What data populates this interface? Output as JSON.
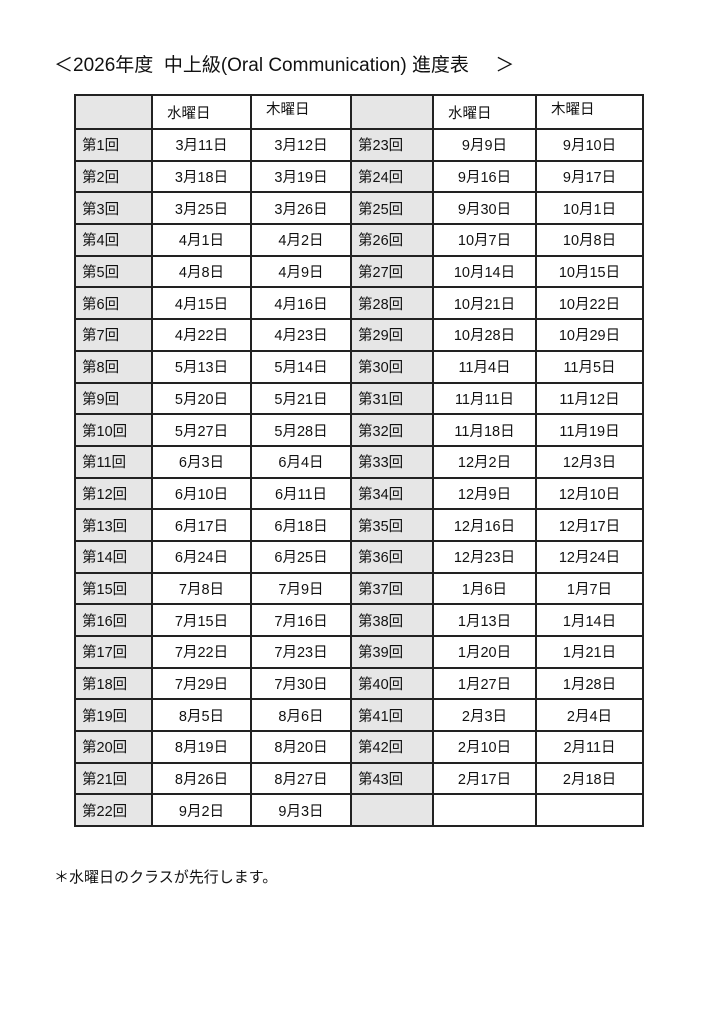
{
  "title": "＜2026年度  中上級(Oral Communication) 進度表     ＞",
  "header": {
    "wed": "水曜日",
    "thu": "木曜日"
  },
  "left_rows": [
    [
      "第1回",
      "3月11日",
      "3月12日"
    ],
    [
      "第2回",
      "3月18日",
      "3月19日"
    ],
    [
      "第3回",
      "3月25日",
      "3月26日"
    ],
    [
      "第4回",
      "4月1日",
      "4月2日"
    ],
    [
      "第5回",
      "4月8日",
      "4月9日"
    ],
    [
      "第6回",
      "4月15日",
      "4月16日"
    ],
    [
      "第7回",
      "4月22日",
      "4月23日"
    ],
    [
      "第8回",
      "5月13日",
      "5月14日"
    ],
    [
      "第9回",
      "5月20日",
      "5月21日"
    ],
    [
      "第10回",
      "5月27日",
      "5月28日"
    ],
    [
      "第11回",
      "6月3日",
      "6月4日"
    ],
    [
      "第12回",
      "6月10日",
      "6月11日"
    ],
    [
      "第13回",
      "6月17日",
      "6月18日"
    ],
    [
      "第14回",
      "6月24日",
      "6月25日"
    ],
    [
      "第15回",
      "7月8日",
      "7月9日"
    ],
    [
      "第16回",
      "7月15日",
      "7月16日"
    ],
    [
      "第17回",
      "7月22日",
      "7月23日"
    ],
    [
      "第18回",
      "7月29日",
      "7月30日"
    ],
    [
      "第19回",
      "8月5日",
      "8月6日"
    ],
    [
      "第20回",
      "8月19日",
      "8月20日"
    ],
    [
      "第21回",
      "8月26日",
      "8月27日"
    ],
    [
      "第22回",
      "9月2日",
      "9月3日"
    ]
  ],
  "right_rows": [
    [
      "第23回",
      "9月9日",
      "9月10日"
    ],
    [
      "第24回",
      "9月16日",
      "9月17日"
    ],
    [
      "第25回",
      "9月30日",
      "10月1日"
    ],
    [
      "第26回",
      "10月7日",
      "10月8日"
    ],
    [
      "第27回",
      "10月14日",
      "10月15日"
    ],
    [
      "第28回",
      "10月21日",
      "10月22日"
    ],
    [
      "第29回",
      "10月28日",
      "10月29日"
    ],
    [
      "第30回",
      "11月4日",
      "11月5日"
    ],
    [
      "第31回",
      "11月11日",
      "11月12日"
    ],
    [
      "第32回",
      "11月18日",
      "11月19日"
    ],
    [
      "第33回",
      "12月2日",
      "12月3日"
    ],
    [
      "第34回",
      "12月9日",
      "12月10日"
    ],
    [
      "第35回",
      "12月16日",
      "12月17日"
    ],
    [
      "第36回",
      "12月23日",
      "12月24日"
    ],
    [
      "第37回",
      "1月6日",
      "1月7日"
    ],
    [
      "第38回",
      "1月13日",
      "1月14日"
    ],
    [
      "第39回",
      "1月20日",
      "1月21日"
    ],
    [
      "第40回",
      "1月27日",
      "1月28日"
    ],
    [
      "第41回",
      "2月3日",
      "2月4日"
    ],
    [
      "第42回",
      "2月10日",
      "2月11日"
    ],
    [
      "第43回",
      "2月17日",
      "2月18日"
    ],
    [
      "",
      "",
      ""
    ]
  ],
  "note": "＊水曜日のクラスが先行します。",
  "colors": {
    "label_bg": "#e6e6e6",
    "border": "#222222"
  }
}
